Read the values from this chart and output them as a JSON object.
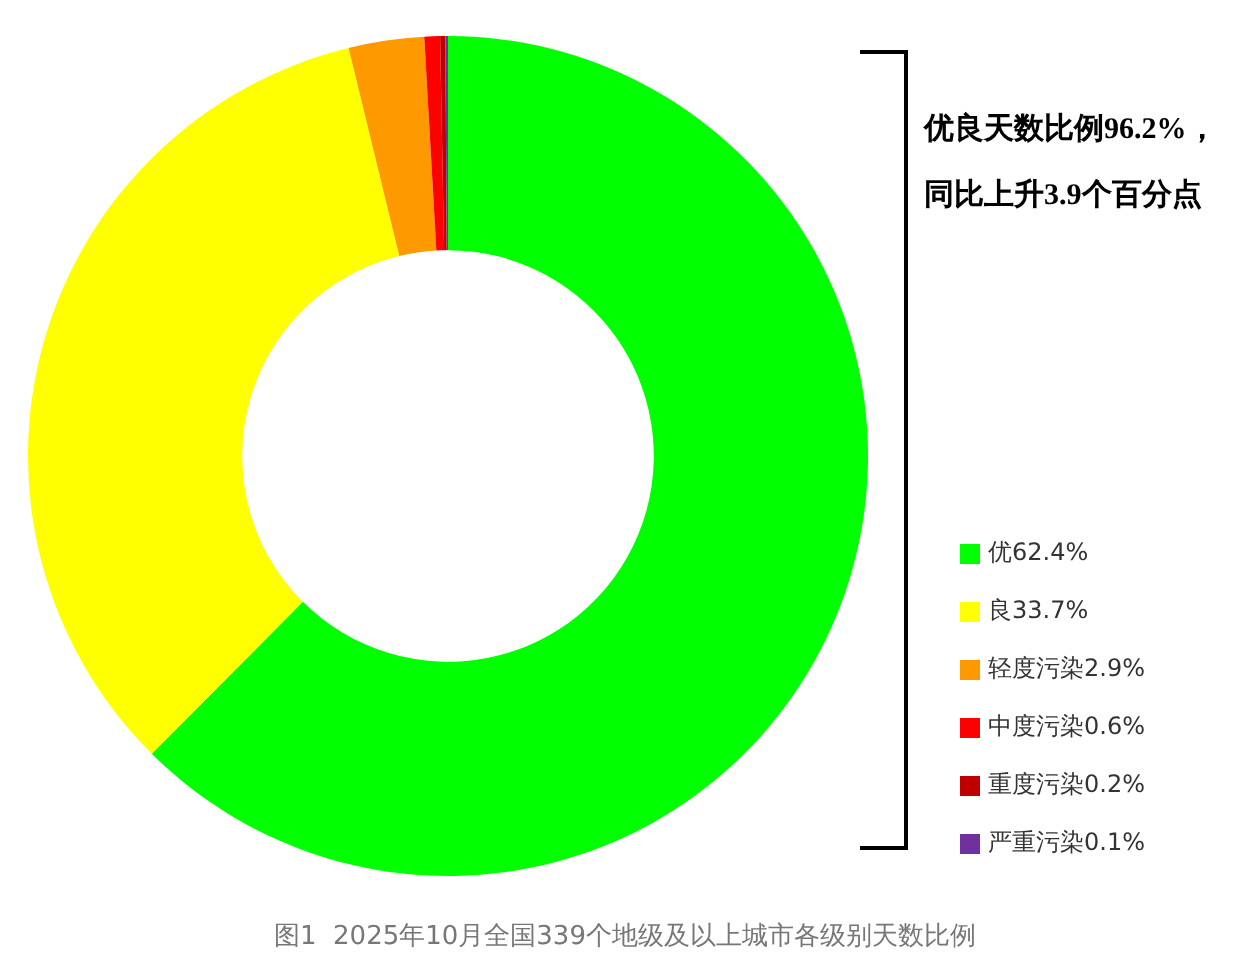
{
  "chart_data": {
    "type": "donut",
    "title": "图1  2025年10月全国339个地级及以上城市各级别天数比例",
    "annotations": [
      "优良天数比例96.2%，",
      "同比上升3.9个百分点"
    ],
    "categories": [
      "优",
      "良",
      "轻度污染",
      "中度污染",
      "重度污染",
      "严重污染"
    ],
    "values": [
      62.4,
      33.7,
      2.9,
      0.6,
      0.2,
      0.1
    ],
    "value_labels": [
      "62.4%",
      "33.7%",
      "2.9%",
      "0.6%",
      "0.2%",
      "0.1%"
    ],
    "colors": [
      "#00ff00",
      "#ffff00",
      "#ff9900",
      "#ff0000",
      "#c00000",
      "#7030a0"
    ],
    "legend": "right"
  }
}
